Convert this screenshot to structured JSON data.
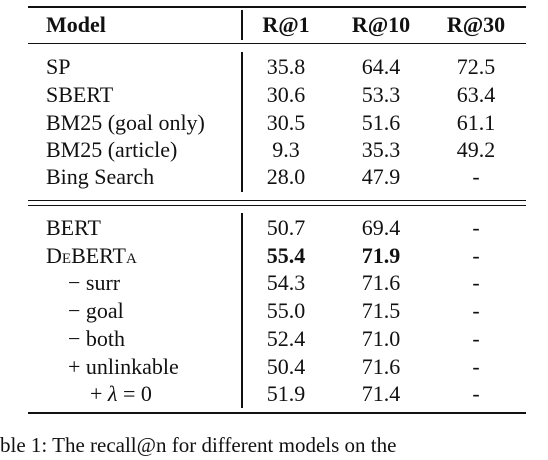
{
  "table": {
    "headers": [
      "Model",
      "R@1",
      "R@10",
      "R@30"
    ],
    "section1": [
      {
        "model": "SP",
        "r1": "35.8",
        "r10": "64.4",
        "r30": "72.5"
      },
      {
        "model_a": "SB",
        "model_b": "ERT",
        "r1": "30.6",
        "r10": "53.3",
        "r30": "63.4"
      },
      {
        "model": "BM25 (goal only)",
        "r1": "30.5",
        "r10": "51.6",
        "r30": "61.1"
      },
      {
        "model": "BM25 (article)",
        "r1": "9.3",
        "r10": "35.3",
        "r30": "49.2"
      },
      {
        "model": "Bing Search",
        "r1": "28.0",
        "r10": "47.9",
        "r30": "-"
      }
    ],
    "section2": [
      {
        "model": "BERT",
        "r1": "50.7",
        "r10": "69.4",
        "r30": "-"
      },
      {
        "model_a": "D",
        "model_b": "e",
        "model_c": "BERT",
        "model_d": "a",
        "r1": "55.4",
        "r10": "71.9",
        "r30": "-"
      },
      {
        "model": "− surr",
        "r1": "54.3",
        "r10": "71.6",
        "r30": "-"
      },
      {
        "model": "− goal",
        "r1": "55.0",
        "r10": "71.5",
        "r30": "-"
      },
      {
        "model": "− both",
        "r1": "52.4",
        "r10": "71.0",
        "r30": "-"
      },
      {
        "model": "+ unlinkable",
        "r1": "50.4",
        "r10": "71.6",
        "r30": "-"
      },
      {
        "model_a": "+ ",
        "model_b": "λ",
        "model_c": " = 0",
        "r1": "51.9",
        "r10": "71.4",
        "r30": "-"
      }
    ]
  },
  "caption": "ble 1: The recall@n for different models on the"
}
